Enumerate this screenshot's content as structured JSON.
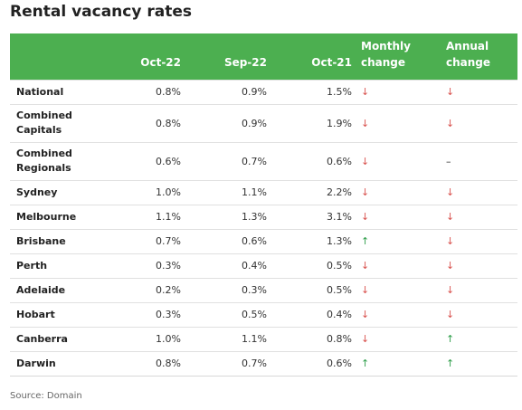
{
  "title": "Rental vacancy rates",
  "headers": {
    "oct22": "Oct-22",
    "sep22": "Sep-22",
    "oct21": "Oct-21",
    "monthly": [
      "Monthly",
      "change"
    ],
    "annual": [
      "Annual",
      "change"
    ]
  },
  "rows": [
    {
      "name": [
        "National"
      ],
      "oct22": "0.8%",
      "sep22": "0.9%",
      "oct21": "1.5%",
      "monthly": "↓",
      "annual": "↓"
    },
    {
      "name": [
        "Combined",
        "Capitals"
      ],
      "oct22": "0.8%",
      "sep22": "0.9%",
      "oct21": "1.9%",
      "monthly": "↓",
      "annual": "↓"
    },
    {
      "name": [
        "Combined",
        "Regionals"
      ],
      "oct22": "0.6%",
      "sep22": "0.7%",
      "oct21": "0.6%",
      "monthly": "↓",
      "annual": "–"
    },
    {
      "name": [
        "Sydney"
      ],
      "oct22": "1.0%",
      "sep22": "1.1%",
      "oct21": "2.2%",
      "monthly": "↓",
      "annual": "↓"
    },
    {
      "name": [
        "Melbourne"
      ],
      "oct22": "1.1%",
      "sep22": "1.3%",
      "oct21": "3.1%",
      "monthly": "↓",
      "annual": "↓"
    },
    {
      "name": [
        "Brisbane"
      ],
      "oct22": "0.7%",
      "sep22": "0.6%",
      "oct21": "1.3%",
      "monthly": "↑",
      "annual": "↓"
    },
    {
      "name": [
        "Perth"
      ],
      "oct22": "0.3%",
      "sep22": "0.4%",
      "oct21": "0.5%",
      "monthly": "↓",
      "annual": "↓"
    },
    {
      "name": [
        "Adelaide"
      ],
      "oct22": "0.2%",
      "sep22": "0.3%",
      "oct21": "0.5%",
      "monthly": "↓",
      "annual": "↓"
    },
    {
      "name": [
        "Hobart"
      ],
      "oct22": "0.3%",
      "sep22": "0.5%",
      "oct21": "0.4%",
      "monthly": "↓",
      "annual": "↓"
    },
    {
      "name": [
        "Canberra"
      ],
      "oct22": "1.0%",
      "sep22": "1.1%",
      "oct21": "0.8%",
      "monthly": "↓",
      "annual": "↑"
    },
    {
      "name": [
        "Darwin"
      ],
      "oct22": "0.8%",
      "sep22": "0.7%",
      "oct21": "0.6%",
      "monthly": "↑",
      "annual": "↑"
    }
  ],
  "colors": {
    "header_bg": "#4caf50",
    "down": "#d9534f",
    "up": "#2e9e4a"
  },
  "source": "Source: Domain"
}
